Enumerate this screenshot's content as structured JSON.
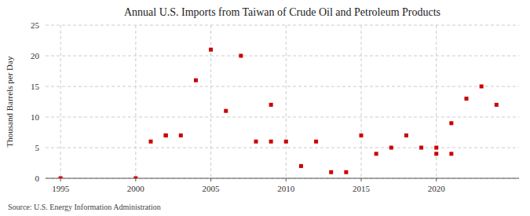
{
  "chart_data": {
    "type": "scatter",
    "title": "Annual U.S. Imports from Taiwan of Crude Oil and Petroleum Products",
    "y_label": "Thousand Barrels per Day",
    "annotations": [
      "Source: U.S. Energy Information Administration"
    ],
    "x": [
      1995,
      2000,
      2001,
      2002,
      2002,
      2003,
      2004,
      2005,
      2006,
      2007,
      2008,
      2009,
      2009,
      2010,
      2011,
      2012,
      2013,
      2014,
      2015,
      2016,
      2017,
      2018,
      2019,
      2020,
      2020,
      2021,
      2021,
      2022,
      2023,
      2024
    ],
    "values": [
      0,
      0,
      6,
      7,
      7,
      7,
      16,
      21,
      11,
      20,
      6,
      6,
      12,
      6,
      2,
      6,
      1,
      1,
      7,
      4,
      5,
      7,
      5,
      5,
      4,
      4,
      9,
      13,
      15,
      12
    ],
    "color": "#cc0000",
    "marker": "square",
    "xlim": [
      1994,
      2025.5
    ],
    "ylim": [
      0,
      25
    ],
    "xticks": [
      1995,
      2000,
      2005,
      2010,
      2015,
      2020
    ],
    "yticks": [
      0,
      5,
      10,
      15,
      20,
      25
    ],
    "grid": true
  }
}
